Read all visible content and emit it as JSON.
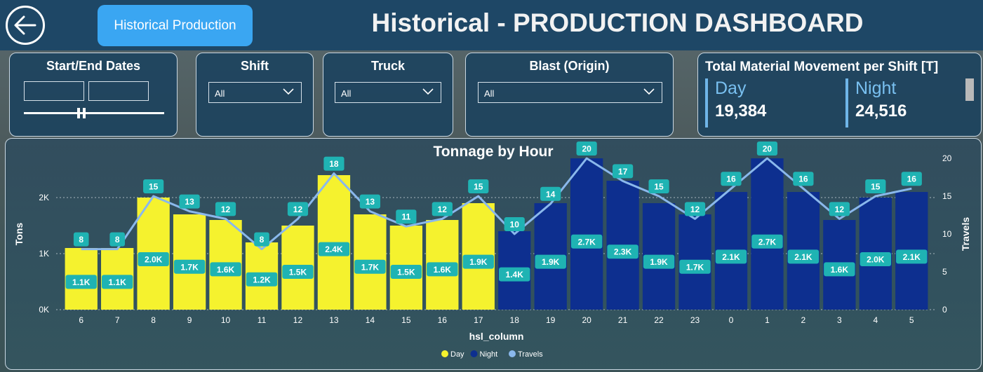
{
  "header": {
    "nav_button_label": "Historical Production",
    "title": "Historical - PRODUCTION DASHBOARD"
  },
  "filters": {
    "dates": {
      "label": "Start/End Dates",
      "start_value": "",
      "end_value": "",
      "slider_level": 0.4
    },
    "shift": {
      "label": "Shift",
      "value": "All"
    },
    "truck": {
      "label": "Truck",
      "value": "All"
    },
    "blast": {
      "label": "Blast (Origin)",
      "value": "All"
    }
  },
  "kpi": {
    "title": "Total Material Movement per Shift [T]",
    "day_label": "Day",
    "day_value": "19,384",
    "night_label": "Night",
    "night_value": "24,516"
  },
  "colors": {
    "day": "#f5f22e",
    "night": "#0d2f8f",
    "travels": "#8ab8ec",
    "label_bg": "#1fb3b3"
  },
  "chart_data": {
    "type": "bar",
    "title": "Tonnage by Hour",
    "xlabel": "hsl_column",
    "ylabel": "Tons",
    "y2label": "Travels",
    "categories": [
      "6",
      "7",
      "8",
      "9",
      "10",
      "11",
      "12",
      "13",
      "14",
      "15",
      "16",
      "17",
      "18",
      "19",
      "20",
      "21",
      "22",
      "23",
      "0",
      "1",
      "2",
      "3",
      "4",
      "5"
    ],
    "series": [
      {
        "name": "Day",
        "values": [
          1100,
          1100,
          2000,
          1700,
          1600,
          1200,
          1500,
          2400,
          1700,
          1500,
          1600,
          1900,
          null,
          null,
          null,
          null,
          null,
          null,
          null,
          null,
          null,
          null,
          null,
          null
        ],
        "labels": [
          "1.1K",
          "1.1K",
          "2.0K",
          "1.7K",
          "1.6K",
          "1.2K",
          "1.5K",
          "2.4K",
          "1.7K",
          "1.5K",
          "1.6K",
          "1.9K",
          "",
          "",
          "",
          "",
          "",
          "",
          "",
          "",
          "",
          "",
          "",
          ""
        ]
      },
      {
        "name": "Night",
        "values": [
          null,
          null,
          null,
          null,
          null,
          null,
          null,
          null,
          null,
          null,
          null,
          null,
          1400,
          1900,
          2700,
          2300,
          1900,
          1700,
          2100,
          2700,
          2100,
          1600,
          2000,
          2100
        ],
        "labels": [
          "",
          "",
          "",
          "",
          "",
          "",
          "",
          "",
          "",
          "",
          "",
          "",
          "1.4K",
          "1.9K",
          "2.7K",
          "2.3K",
          "1.9K",
          "1.7K",
          "2.1K",
          "2.7K",
          "2.1K",
          "1.6K",
          "2.0K",
          "2.1K"
        ]
      },
      {
        "name": "Travels",
        "axis": "right",
        "values": [
          8,
          8,
          15,
          13,
          12,
          8,
          12,
          18,
          13,
          11,
          12,
          15,
          10,
          14,
          20,
          17,
          15,
          12,
          16,
          20,
          16,
          12,
          15,
          16
        ]
      }
    ],
    "ylim": [
      0,
      2700
    ],
    "yticks": [
      "0K",
      "1K",
      "2K"
    ],
    "y2lim": [
      0,
      20
    ],
    "y2ticks": [
      "0",
      "5",
      "10",
      "15",
      "20"
    ],
    "legend": {
      "position": "bottom",
      "entries": [
        "Day",
        "Night",
        "Travels"
      ]
    }
  }
}
